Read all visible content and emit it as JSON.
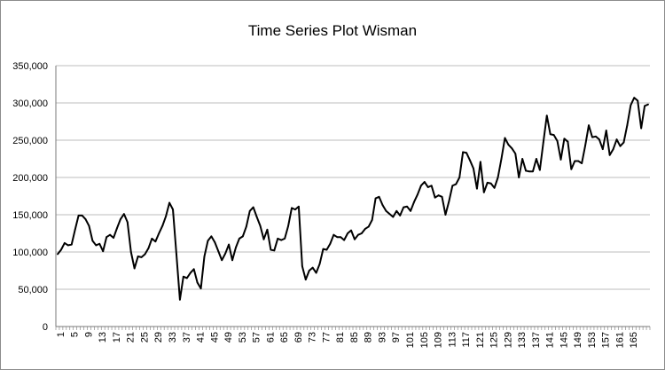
{
  "chart_data": {
    "type": "line",
    "title": "Time Series Plot Wisman",
    "xlabel": "",
    "ylabel": "",
    "ylim": [
      0,
      350000
    ],
    "y_ticks": [
      0,
      50000,
      100000,
      150000,
      200000,
      250000,
      300000,
      350000
    ],
    "y_tick_labels": [
      "0",
      "50,000",
      "100,000",
      "150,000",
      "200,000",
      "250,000",
      "300,000",
      "350,000"
    ],
    "x_tick_labels": [
      "1",
      "5",
      "9",
      "13",
      "17",
      "21",
      "25",
      "29",
      "33",
      "37",
      "41",
      "45",
      "49",
      "53",
      "57",
      "61",
      "65",
      "69",
      "73",
      "77",
      "81",
      "85",
      "89",
      "93",
      "97",
      "101",
      "105",
      "109",
      "113",
      "117",
      "121",
      "125",
      "129",
      "133",
      "137",
      "141",
      "145",
      "149",
      "153",
      "157",
      "161",
      "165"
    ],
    "grid": "horizontal",
    "line_color": "#000000",
    "grid_color": "#bdbdbd",
    "series": [
      {
        "values": [
          97000,
          103000,
          112000,
          109000,
          110000,
          130000,
          149000,
          149000,
          144000,
          135000,
          115000,
          109000,
          111000,
          101000,
          120000,
          123000,
          119000,
          132000,
          144000,
          151000,
          140000,
          100000,
          78000,
          94000,
          93000,
          97000,
          105000,
          118000,
          114000,
          125000,
          135000,
          148000,
          166000,
          157000,
          97000,
          36000,
          67000,
          65000,
          72000,
          77000,
          59000,
          51000,
          94000,
          115000,
          121000,
          113000,
          101000,
          89000,
          98000,
          110000,
          89000,
          106000,
          118000,
          121000,
          134000,
          155000,
          160000,
          147000,
          135000,
          117000,
          130000,
          103000,
          102000,
          118000,
          116000,
          118000,
          135000,
          159000,
          157000,
          161000,
          81000,
          63000,
          75000,
          79000,
          72000,
          84000,
          104000,
          103000,
          111000,
          123000,
          120000,
          120000,
          116000,
          125000,
          129000,
          117000,
          123000,
          125000,
          131000,
          134000,
          143000,
          172000,
          174000,
          163000,
          155000,
          151000,
          147000,
          155000,
          149000,
          160000,
          161000,
          155000,
          167000,
          177000,
          189000,
          194000,
          187000,
          189000,
          173000,
          176000,
          174000,
          150000,
          168000,
          189000,
          191000,
          200000,
          234000,
          233000,
          223000,
          212000,
          185000,
          221000,
          180000,
          193000,
          192000,
          186000,
          200000,
          225000,
          253000,
          244000,
          239000,
          232000,
          200000,
          225000,
          209000,
          208000,
          208000,
          225000,
          210000,
          247000,
          283000,
          258000,
          257000,
          249000,
          224000,
          252000,
          248000,
          211000,
          222000,
          222000,
          219000,
          243000,
          270000,
          254000,
          255000,
          251000,
          238000,
          263000,
          230000,
          238000,
          251000,
          242000,
          247000,
          270000,
          297000,
          307000,
          303000,
          266000,
          296000,
          298000
        ]
      }
    ]
  }
}
